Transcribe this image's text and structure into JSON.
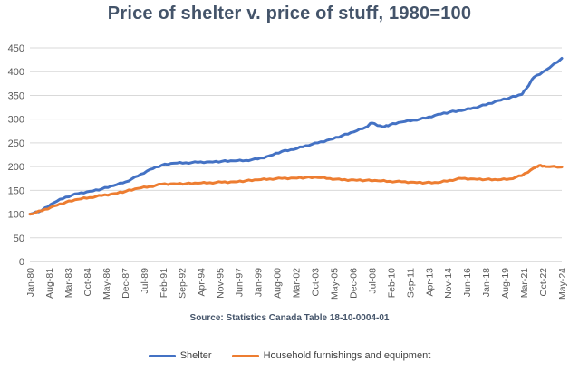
{
  "chart_data": {
    "type": "line",
    "title": "Price of shelter v. price of stuff, 1980=100",
    "source": "Source: Statistics Canada Table 18-10-0004-01",
    "xlabel": "",
    "ylabel": "",
    "ylim": [
      0,
      450
    ],
    "yticks": [
      0,
      50,
      100,
      150,
      200,
      250,
      300,
      350,
      400,
      450
    ],
    "xlim": [
      "1980-01",
      "2024-05"
    ],
    "x_tick_labels": [
      "Jan-80",
      "Aug-81",
      "Mar-83",
      "Oct-84",
      "May-86",
      "Dec-87",
      "Jul-89",
      "Feb-91",
      "Sep-92",
      "Apr-94",
      "Nov-95",
      "Jun-97",
      "Jan-99",
      "Aug-00",
      "Mar-02",
      "Oct-03",
      "May-05",
      "Dec-06",
      "Jul-08",
      "Feb-10",
      "Sep-11",
      "Apr-13",
      "Nov-14",
      "Jun-16",
      "Jan-18",
      "Aug-19",
      "Mar-21",
      "Oct-22",
      "May-24"
    ],
    "grid": true,
    "legend_position": "bottom",
    "series": [
      {
        "name": "Shelter",
        "color": "#4472c4",
        "points": [
          [
            "1980-01",
            100
          ],
          [
            "1981-01",
            108
          ],
          [
            "1982-01",
            124
          ],
          [
            "1983-01",
            136
          ],
          [
            "1984-01",
            143
          ],
          [
            "1985-01",
            148
          ],
          [
            "1986-01",
            153
          ],
          [
            "1987-01",
            160
          ],
          [
            "1988-01",
            168
          ],
          [
            "1989-01",
            180
          ],
          [
            "1990-01",
            194
          ],
          [
            "1991-01",
            203
          ],
          [
            "1992-01",
            207
          ],
          [
            "1993-01",
            208
          ],
          [
            "1994-01",
            209
          ],
          [
            "1995-01",
            210
          ],
          [
            "1996-01",
            211
          ],
          [
            "1997-01",
            212
          ],
          [
            "1998-01",
            213
          ],
          [
            "1999-01",
            216
          ],
          [
            "2000-01",
            223
          ],
          [
            "2001-01",
            232
          ],
          [
            "2002-01",
            236
          ],
          [
            "2003-01",
            244
          ],
          [
            "2004-01",
            250
          ],
          [
            "2005-01",
            257
          ],
          [
            "2006-01",
            265
          ],
          [
            "2007-01",
            273
          ],
          [
            "2008-01",
            283
          ],
          [
            "2008-07",
            292
          ],
          [
            "2009-06",
            284
          ],
          [
            "2010-01",
            288
          ],
          [
            "2011-01",
            294
          ],
          [
            "2012-01",
            298
          ],
          [
            "2013-01",
            302
          ],
          [
            "2014-01",
            310
          ],
          [
            "2015-01",
            315
          ],
          [
            "2016-01",
            318
          ],
          [
            "2017-01",
            324
          ],
          [
            "2018-01",
            330
          ],
          [
            "2019-01",
            339
          ],
          [
            "2020-01",
            345
          ],
          [
            "2021-01",
            352
          ],
          [
            "2021-06",
            366
          ],
          [
            "2022-01",
            388
          ],
          [
            "2023-01",
            403
          ],
          [
            "2024-05",
            428
          ]
        ]
      },
      {
        "name": "Household furnishings and equipment",
        "color": "#ed7d31",
        "points": [
          [
            "1980-01",
            100
          ],
          [
            "1981-01",
            107
          ],
          [
            "1982-01",
            117
          ],
          [
            "1983-01",
            125
          ],
          [
            "1984-01",
            131
          ],
          [
            "1985-01",
            135
          ],
          [
            "1986-01",
            139
          ],
          [
            "1987-01",
            143
          ],
          [
            "1988-01",
            148
          ],
          [
            "1989-01",
            154
          ],
          [
            "1990-01",
            158
          ],
          [
            "1991-01",
            163
          ],
          [
            "1992-01",
            164
          ],
          [
            "1993-01",
            164
          ],
          [
            "1994-01",
            165
          ],
          [
            "1995-01",
            166
          ],
          [
            "1996-01",
            167
          ],
          [
            "1997-01",
            168
          ],
          [
            "1998-01",
            170
          ],
          [
            "1999-01",
            172
          ],
          [
            "2000-01",
            174
          ],
          [
            "2001-01",
            175
          ],
          [
            "2002-01",
            176
          ],
          [
            "2003-01",
            177
          ],
          [
            "2004-01",
            177
          ],
          [
            "2005-01",
            175
          ],
          [
            "2006-01",
            172
          ],
          [
            "2007-01",
            172
          ],
          [
            "2008-01",
            171
          ],
          [
            "2009-01",
            170
          ],
          [
            "2010-01",
            169
          ],
          [
            "2011-01",
            168
          ],
          [
            "2012-01",
            167
          ],
          [
            "2013-01",
            166
          ],
          [
            "2014-01",
            166
          ],
          [
            "2015-01",
            171
          ],
          [
            "2016-01",
            175
          ],
          [
            "2017-01",
            174
          ],
          [
            "2018-01",
            173
          ],
          [
            "2019-01",
            172
          ],
          [
            "2020-01",
            174
          ],
          [
            "2021-01",
            181
          ],
          [
            "2022-01",
            197
          ],
          [
            "2022-06",
            202
          ],
          [
            "2023-01",
            200
          ],
          [
            "2024-05",
            199
          ]
        ]
      }
    ]
  }
}
